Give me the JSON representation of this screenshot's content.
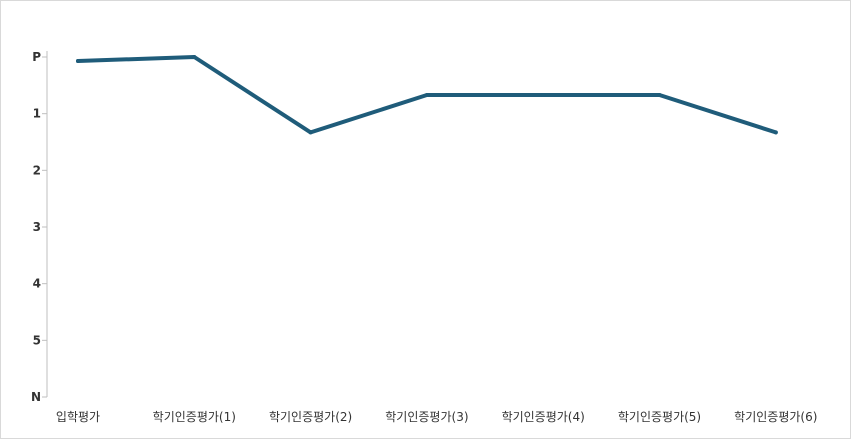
{
  "chart_data": {
    "type": "line",
    "title": "",
    "xlabel": "",
    "ylabel": "",
    "categories": [
      "입학평가",
      "학기인증평가(1)",
      "학기인증평가(2)",
      "학기인증평가(3)",
      "학기인증평가(4)",
      "학기인증평가(5)",
      "학기인증평가(6)"
    ],
    "y_tick_labels": [
      "P",
      "1",
      "2",
      "3",
      "4",
      "5",
      "N"
    ],
    "y_tick_values": [
      0,
      1,
      2,
      3,
      4,
      5,
      6
    ],
    "ylim": [
      0,
      6
    ],
    "y_inverted": true,
    "series": [
      {
        "values": [
          0.07,
          0.0,
          1.33,
          0.67,
          0.67,
          0.67,
          1.33
        ],
        "color": "#1f5c7a"
      }
    ],
    "grid": false,
    "legend": "none"
  }
}
